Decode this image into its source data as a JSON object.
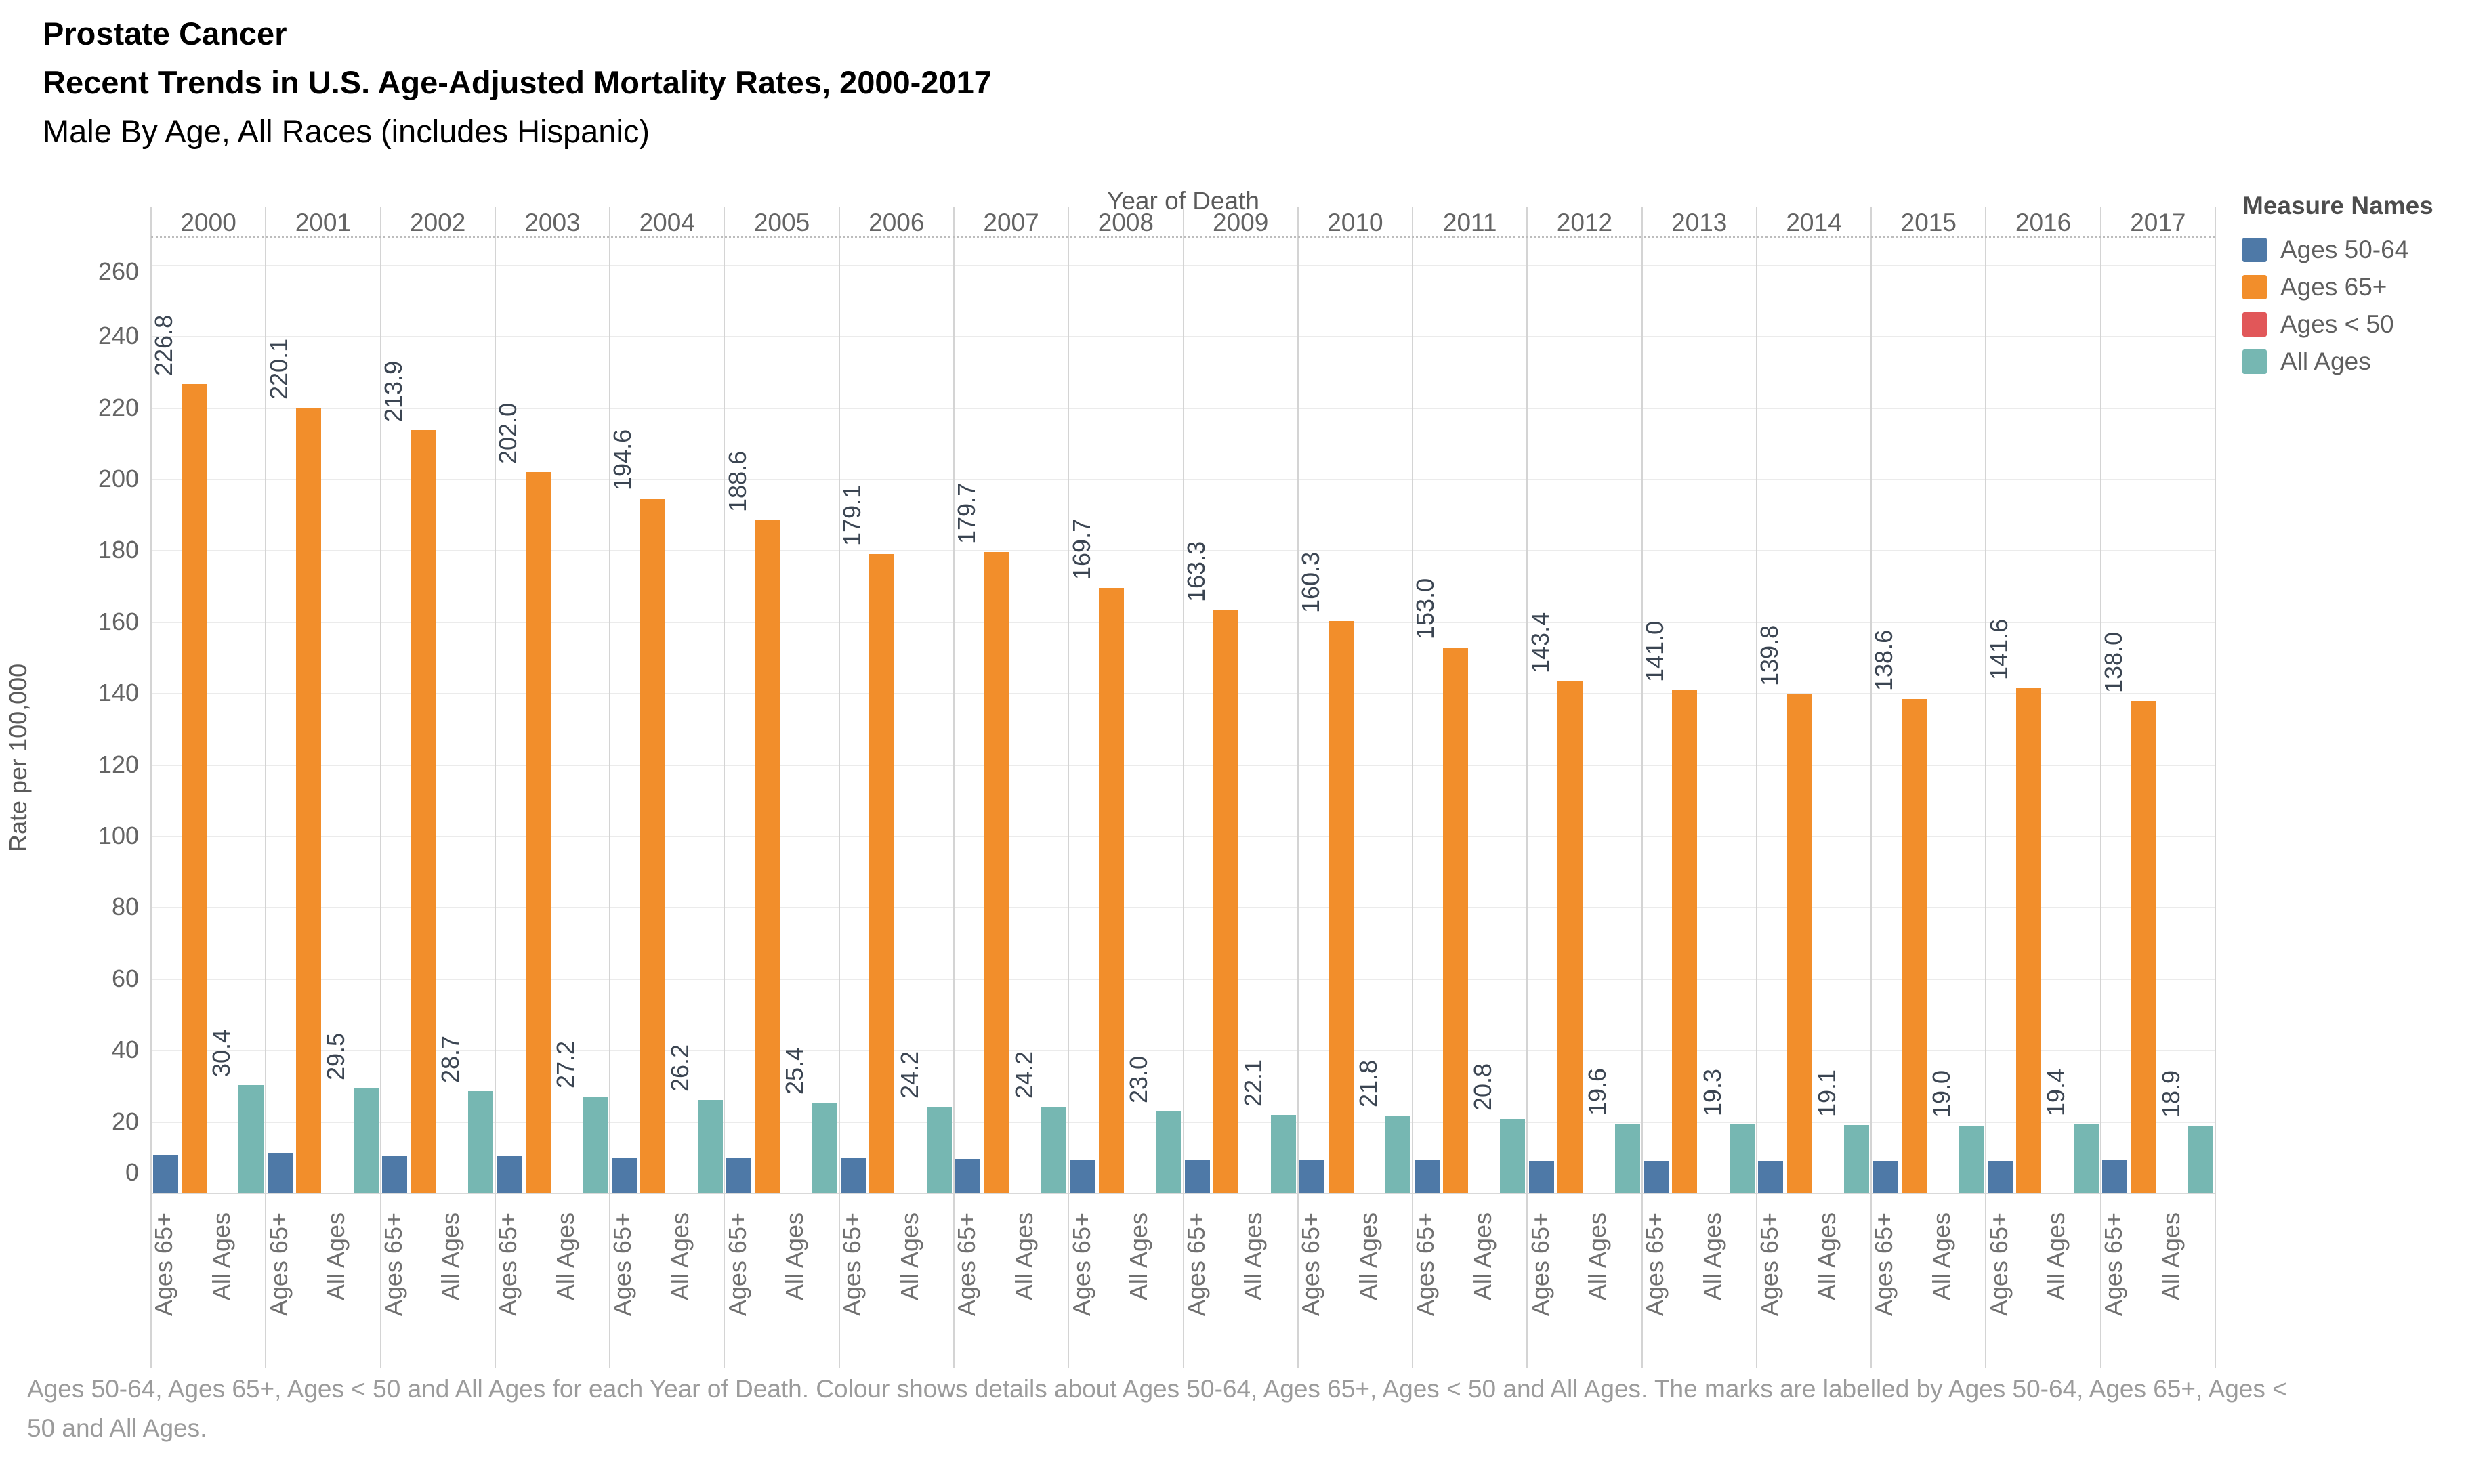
{
  "title": {
    "line1": "Prostate Cancer",
    "line2": "Recent Trends in U.S. Age-Adjusted Mortality Rates, 2000-2017",
    "line3": "Male By Age, All Races (includes Hispanic)"
  },
  "chart_data": {
    "type": "bar",
    "x_axis_title": "Year of Death",
    "ylabel": "Rate per 100,000",
    "ylim": [
      0,
      268
    ],
    "yticks": [
      0,
      20,
      40,
      60,
      80,
      100,
      120,
      140,
      160,
      180,
      200,
      220,
      240,
      260
    ],
    "grid": "horizontal",
    "legend_position": "top-right",
    "categories": [
      "2000",
      "2001",
      "2002",
      "2003",
      "2004",
      "2005",
      "2006",
      "2007",
      "2008",
      "2009",
      "2010",
      "2011",
      "2012",
      "2013",
      "2014",
      "2015",
      "2016",
      "2017"
    ],
    "series": [
      {
        "name": "Ages 50-64",
        "color": "#4e79a7",
        "labeled": false,
        "estimated_from_pixels": true,
        "values": [
          10.8,
          11.3,
          10.7,
          10.4,
          10.1,
          9.9,
          9.8,
          9.6,
          9.5,
          9.4,
          9.4,
          9.3,
          9.2,
          9.1,
          9.1,
          9.2,
          9.2,
          9.3
        ]
      },
      {
        "name": "Ages 65+",
        "color": "#f28e2b",
        "labeled": true,
        "values": [
          226.8,
          220.1,
          213.9,
          202.0,
          194.6,
          188.6,
          179.1,
          179.7,
          169.7,
          163.3,
          160.3,
          153.0,
          143.4,
          141.0,
          139.8,
          138.6,
          141.6,
          138.0
        ]
      },
      {
        "name": "Ages < 50",
        "color": "#e15759",
        "labeled": false,
        "estimated_from_pixels": true,
        "values": [
          0.1,
          0.1,
          0.1,
          0.1,
          0.1,
          0.1,
          0.1,
          0.1,
          0.1,
          0.1,
          0.1,
          0.1,
          0.1,
          0.1,
          0.1,
          0.1,
          0.1,
          0.1
        ]
      },
      {
        "name": "All Ages",
        "color": "#76b7b2",
        "labeled": true,
        "values": [
          30.4,
          29.5,
          28.7,
          27.2,
          26.2,
          25.4,
          24.2,
          24.2,
          23.0,
          22.1,
          21.8,
          20.8,
          19.6,
          19.3,
          19.1,
          19.0,
          19.4,
          18.9
        ]
      }
    ],
    "column_labels_shown": [
      "Ages 65+",
      "All Ages"
    ]
  },
  "legend": {
    "title": "Measure Names",
    "items": [
      {
        "label": "Ages 50-64",
        "color": "#4e79a7"
      },
      {
        "label": "Ages 65+",
        "color": "#f28e2b"
      },
      {
        "label": "Ages < 50",
        "color": "#e15759"
      },
      {
        "label": "All Ages",
        "color": "#76b7b2"
      }
    ]
  },
  "caption": "Ages 50-64, Ages 65+, Ages < 50 and All Ages for each Year of Death.  Colour shows details about Ages 50-64, Ages 65+, Ages < 50 and All Ages.  The marks are labelled by Ages 50-64, Ages 65+, Ages < 50 and All Ages."
}
